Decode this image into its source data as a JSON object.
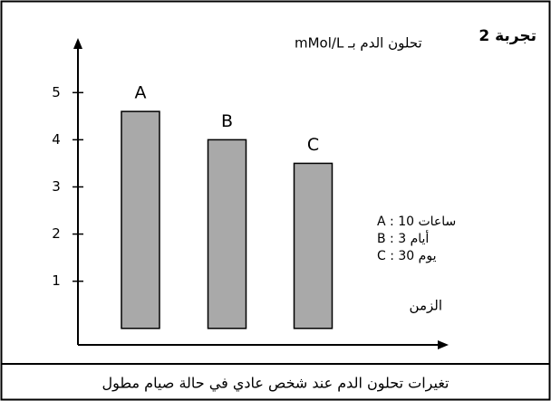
{
  "chart_data": {
    "type": "bar",
    "title": "تجربة 2",
    "y_label": "تحلون الدم بـ mMol/L",
    "x_label": "الزمن",
    "categories": [
      "A",
      "B",
      "C"
    ],
    "values": [
      4.6,
      4.0,
      3.5
    ],
    "color": "#a9a9a9",
    "ylim": [
      -0.35,
      6.1
    ],
    "yticks": [
      1,
      2,
      3,
      4,
      5
    ],
    "grid": false,
    "legend": [
      "A : 10 ساعات",
      "B : 3 أيام",
      "C : 30 يوم"
    ],
    "caption": "تغيرات تحلون الدم عند شخص عادي في حالة صيام مطول"
  }
}
